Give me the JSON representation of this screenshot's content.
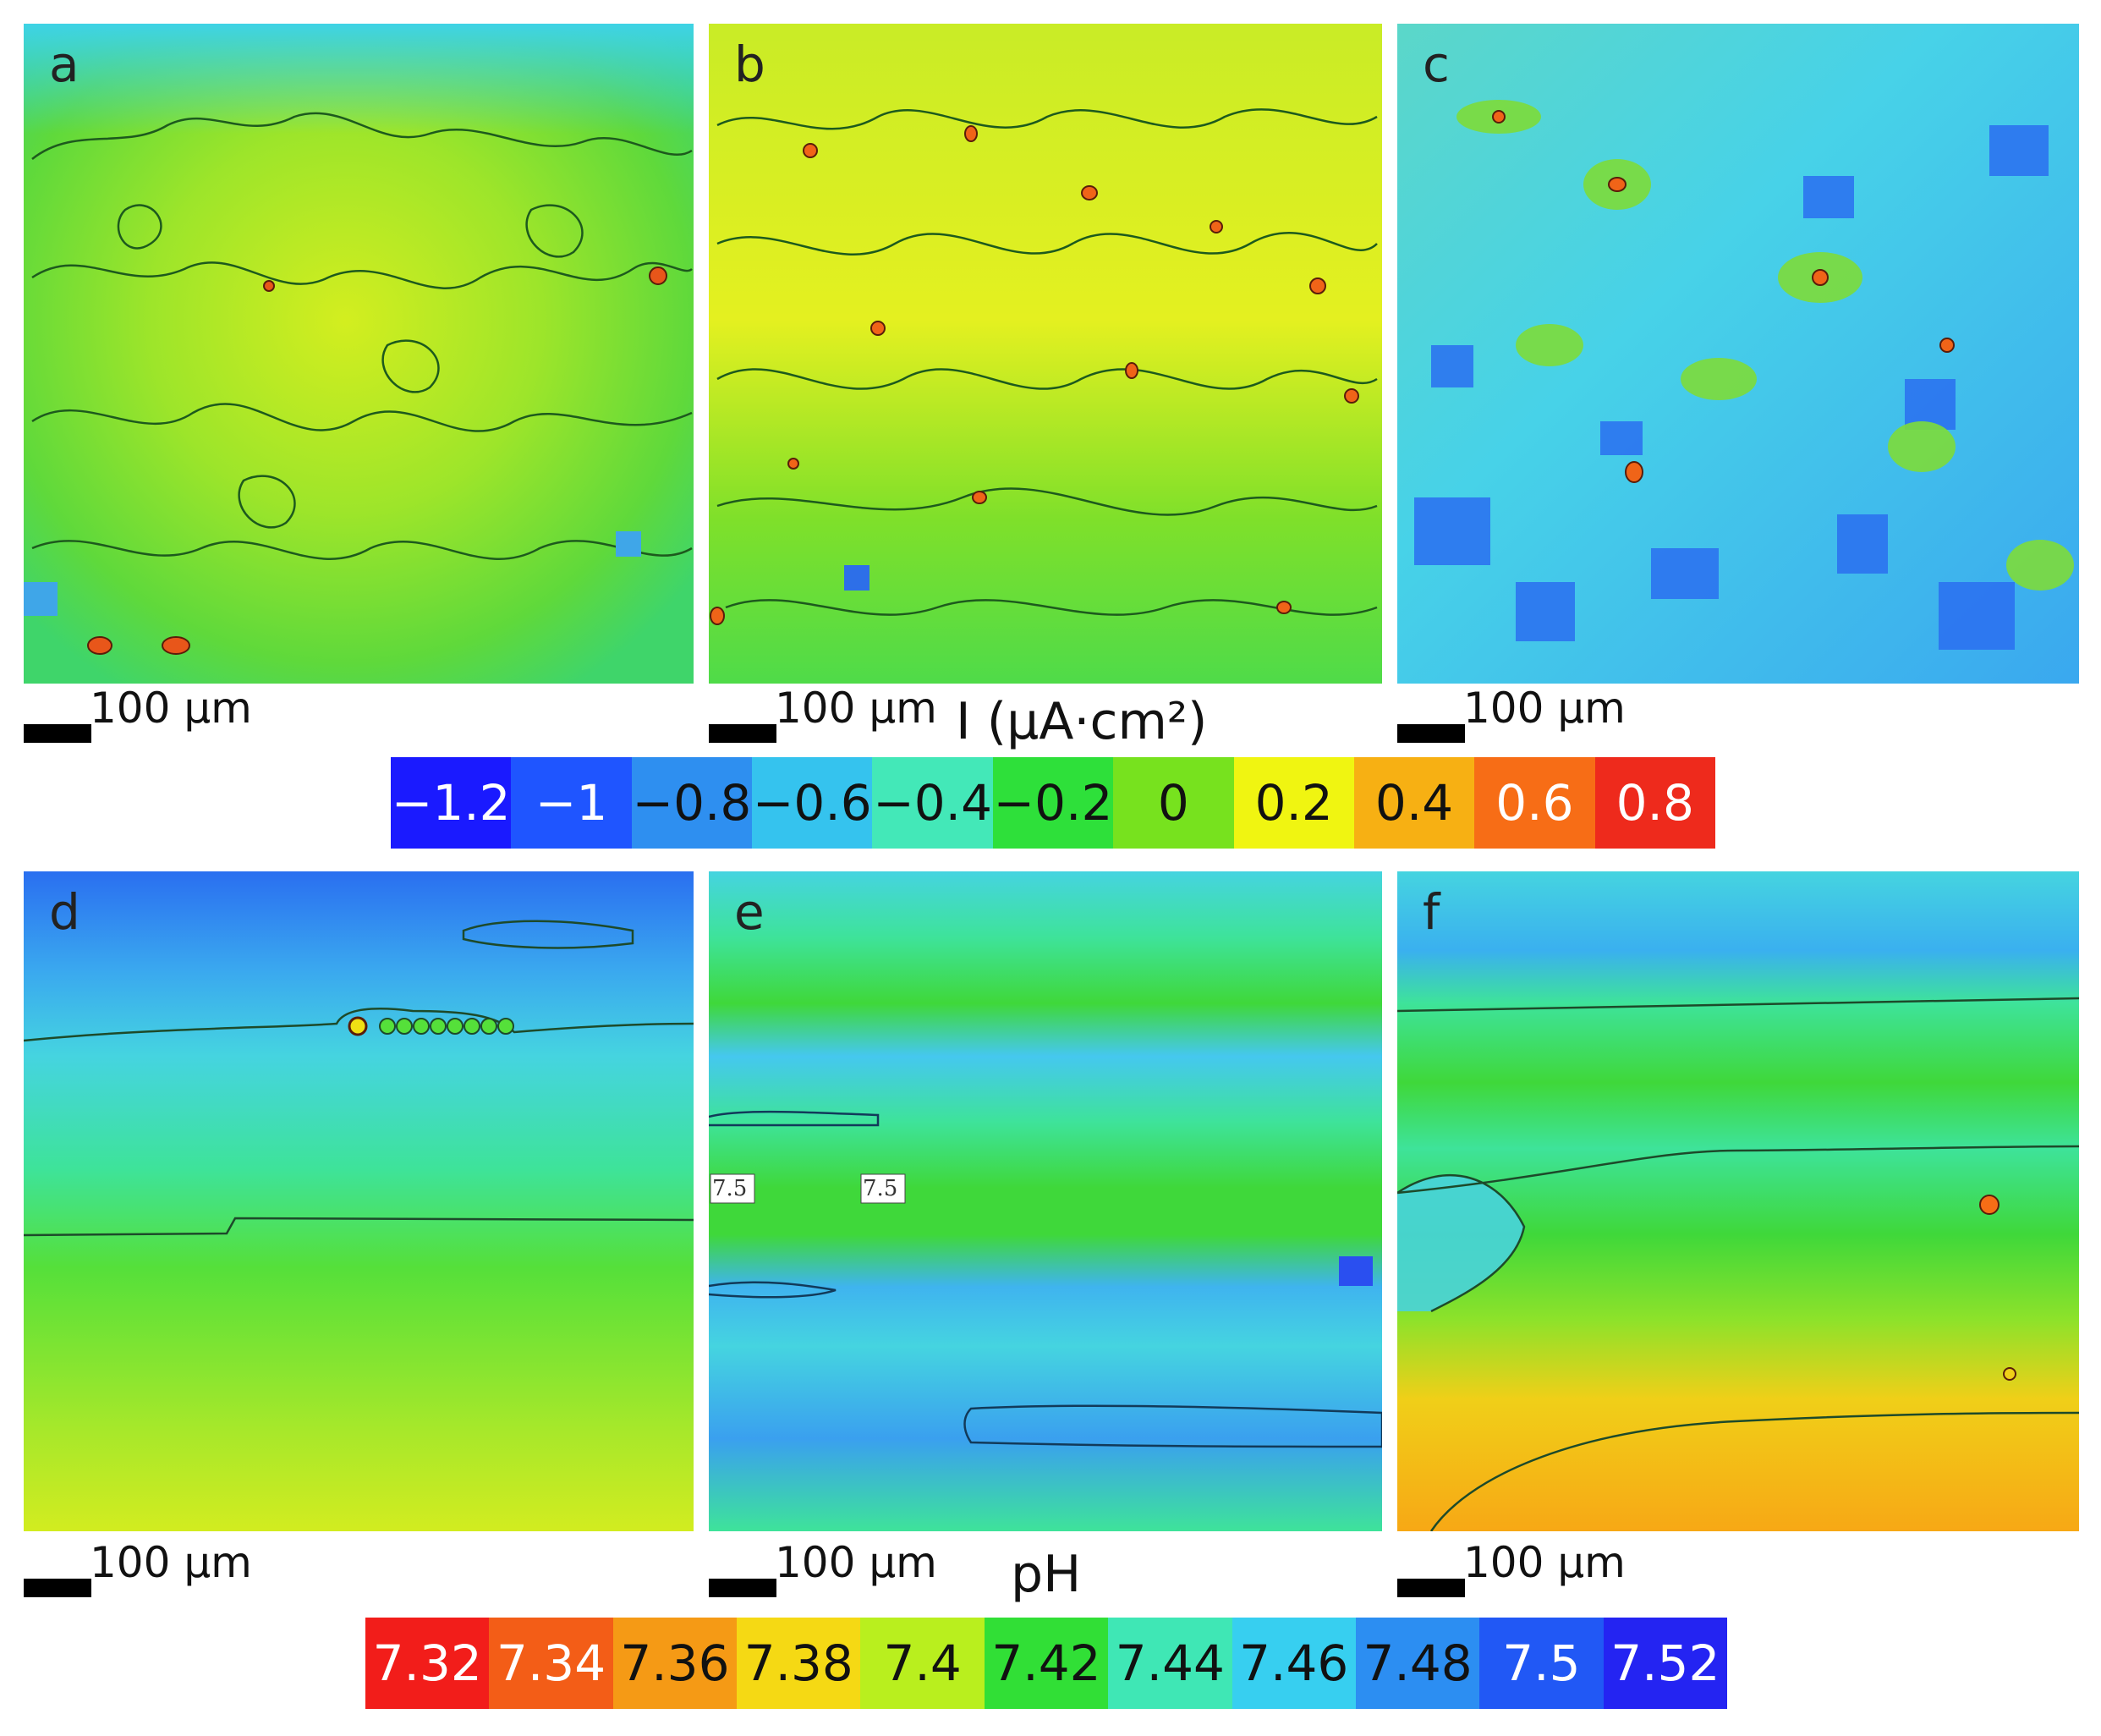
{
  "current_maps": {
    "unit_label": "I (µA·cm²)",
    "panels": [
      {
        "letter": "a",
        "scale": "100 µm"
      },
      {
        "letter": "b",
        "scale": "100 µm"
      },
      {
        "letter": "c",
        "scale": "100 µm"
      }
    ],
    "colorbar": [
      {
        "label": "−1.2",
        "color": "#1a1aff",
        "text": "#ffffff"
      },
      {
        "label": "−1",
        "color": "#1f55ff",
        "text": "#ffffff"
      },
      {
        "label": "−0.8",
        "color": "#2e8ff0",
        "text": "#111111"
      },
      {
        "label": "−0.6",
        "color": "#35c3ee",
        "text": "#111111"
      },
      {
        "label": "−0.4",
        "color": "#43e8b8",
        "text": "#111111"
      },
      {
        "label": "−0.2",
        "color": "#2ee03a",
        "text": "#111111"
      },
      {
        "label": "0",
        "color": "#77e21e",
        "text": "#111111"
      },
      {
        "label": "0.2",
        "color": "#f0f511",
        "text": "#111111"
      },
      {
        "label": "0.4",
        "color": "#f7b013",
        "text": "#111111"
      },
      {
        "label": "0.6",
        "color": "#f76d16",
        "text": "#ffffff"
      },
      {
        "label": "0.8",
        "color": "#ee2a1c",
        "text": "#ffffff"
      }
    ]
  },
  "ph_maps": {
    "unit_label": "pH",
    "panels": [
      {
        "letter": "d",
        "scale": "100 µm"
      },
      {
        "letter": "e",
        "scale": "100 µm",
        "contour_labels": [
          "7.5",
          "7.5"
        ]
      },
      {
        "letter": "f",
        "scale": "100 µm"
      }
    ],
    "colorbar": [
      {
        "label": "7.32",
        "color": "#f21d1a",
        "text": "#ffffff"
      },
      {
        "label": "7.34",
        "color": "#f35d17",
        "text": "#ffffff"
      },
      {
        "label": "7.36",
        "color": "#f59a15",
        "text": "#111111"
      },
      {
        "label": "7.38",
        "color": "#f5d914",
        "text": "#111111"
      },
      {
        "label": "7.4",
        "color": "#b9ef1e",
        "text": "#111111"
      },
      {
        "label": "7.42",
        "color": "#31df36",
        "text": "#111111"
      },
      {
        "label": "7.44",
        "color": "#3fe7b5",
        "text": "#111111"
      },
      {
        "label": "7.46",
        "color": "#37cff0",
        "text": "#111111"
      },
      {
        "label": "7.48",
        "color": "#2c8ef2",
        "text": "#111111"
      },
      {
        "label": "7.5",
        "color": "#2158f5",
        "text": "#ffffff"
      },
      {
        "label": "7.52",
        "color": "#2424f2",
        "text": "#ffffff"
      }
    ]
  }
}
